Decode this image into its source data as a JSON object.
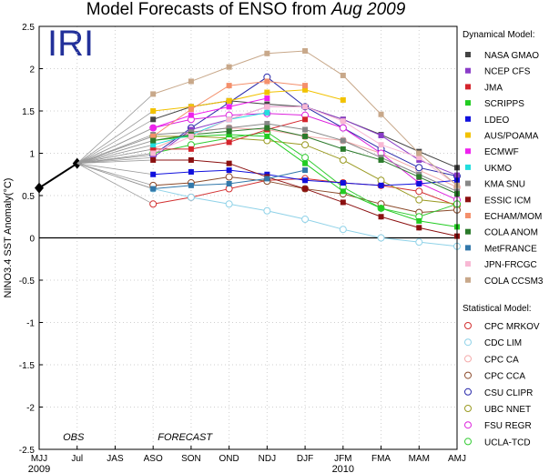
{
  "chart_data": {
    "type": "line",
    "title_main": "Model Forecasts of ENSO from ",
    "title_date": "Aug 2009",
    "logo": "IRI",
    "ylabel": "NINO3.4 SST Anomaly(°C)",
    "ylim": [
      -2.5,
      2.5
    ],
    "yticks": [
      "-2.5",
      "-2",
      "-1.5",
      "-1",
      "-0.5",
      "0",
      "0.5",
      "1",
      "1.5",
      "2",
      "2.5"
    ],
    "categories": [
      "MJJ",
      "Jul",
      "JAS",
      "ASO",
      "SON",
      "OND",
      "NDJ",
      "DJF",
      "JFM",
      "FMA",
      "MAM",
      "AMJ"
    ],
    "year_labels": [
      {
        "text": "2009",
        "at": "MJJ"
      },
      {
        "text": "2010",
        "at": "JFM"
      }
    ],
    "obs_label": "OBS",
    "forecast_label": "FORECAST",
    "observed": {
      "x": [
        "MJJ",
        "Jul"
      ],
      "values": [
        0.59,
        0.88
      ],
      "color": "#000000"
    },
    "legend_dynamical_header": "Dynamical Model:",
    "legend_statistical_header": "Statistical Model:",
    "dynamical": [
      {
        "name": "NASA GMAO",
        "color": "#444444",
        "values": [
          1.4,
          1.55,
          1.62,
          1.58,
          1.55,
          1.4,
          1.22,
          1.02,
          0.83
        ]
      },
      {
        "name": "NCEP CFS",
        "color": "#8a3cc8",
        "values": [
          0.95,
          1.28,
          1.4,
          1.55,
          1.55,
          1.4,
          1.21,
          0.92,
          0.74
        ]
      },
      {
        "name": "JMA",
        "color": "#d4242c",
        "values": [
          1.05,
          1.05,
          1.13,
          1.28,
          1.4,
          null,
          null,
          null,
          null
        ]
      },
      {
        "name": "SCRIPPS",
        "color": "#22cc22",
        "values": [
          1.15,
          1.2,
          1.22,
          1.2,
          0.88,
          0.55,
          0.35,
          0.2,
          0.13
        ]
      },
      {
        "name": "LDEO",
        "color": "#1010dd",
        "values": [
          0.75,
          0.78,
          0.8,
          0.75,
          0.68,
          0.65,
          0.62,
          0.64,
          0.68
        ]
      },
      {
        "name": "AUS/POAMA",
        "color": "#f2c200",
        "values": [
          1.5,
          1.55,
          1.62,
          1.72,
          1.75,
          1.63,
          null,
          null,
          null
        ]
      },
      {
        "name": "ECMWF",
        "color": "#ee22ee",
        "values": [
          1.3,
          1.45,
          1.55,
          1.65,
          null,
          null,
          null,
          null,
          null
        ]
      },
      {
        "name": "UKMO",
        "color": "#22dddd",
        "values": [
          1.1,
          1.22,
          1.4,
          1.48,
          null,
          null,
          null,
          null,
          null
        ]
      },
      {
        "name": "KMA SNU",
        "color": "#888888",
        "values": [
          1.22,
          1.25,
          1.3,
          1.35,
          1.28,
          1.15,
          0.95,
          0.75,
          0.55
        ]
      },
      {
        "name": "ESSIC ICM",
        "color": "#8b1010",
        "values": [
          0.92,
          0.92,
          0.88,
          0.72,
          0.58,
          0.42,
          0.25,
          0.12,
          0.02
        ]
      },
      {
        "name": "ECHAM/MOM",
        "color": "#f4906c",
        "values": [
          1.2,
          1.52,
          1.8,
          1.85,
          1.8,
          null,
          null,
          null,
          null
        ]
      },
      {
        "name": "COLA ANOM",
        "color": "#2b7a2b",
        "values": [
          1.15,
          1.22,
          1.26,
          1.3,
          1.2,
          1.05,
          0.92,
          0.72,
          0.52
        ]
      },
      {
        "name": "MetFRANCE",
        "color": "#3278aa",
        "values": [
          0.58,
          0.62,
          0.64,
          0.7,
          0.8,
          null,
          null,
          null,
          null
        ]
      },
      {
        "name": "JPN-FRCGC",
        "color": "#f8b8d4",
        "values": [
          1.0,
          1.2,
          1.4,
          1.55,
          1.55,
          1.38,
          1.1,
          0.95,
          0.62
        ]
      },
      {
        "name": "COLA CCSM3",
        "color": "#c8a88a",
        "values": [
          1.7,
          1.85,
          2.02,
          2.18,
          2.21,
          1.92,
          1.46,
          1.0,
          0.62
        ]
      }
    ],
    "statistical": [
      {
        "name": "CPC MRKOV",
        "color": "#d23030",
        "values": [
          0.4,
          0.48,
          0.58,
          0.68,
          0.7,
          0.65,
          0.62,
          0.55,
          0.38
        ]
      },
      {
        "name": "CDC LIM",
        "color": "#8fd2e8",
        "values": [
          0.58,
          0.48,
          0.4,
          0.32,
          0.22,
          0.1,
          0.0,
          -0.05,
          -0.1
        ]
      },
      {
        "name": "CPC CA",
        "color": "#f4aaaa",
        "values": [
          1.05,
          1.25,
          1.3,
          1.28,
          1.2,
          1.15,
          1.0,
          0.8,
          0.6
        ]
      },
      {
        "name": "CPC CCA",
        "color": "#8b4a2a",
        "values": [
          0.62,
          0.65,
          0.72,
          0.67,
          0.58,
          0.52,
          0.4,
          0.3,
          0.33
        ]
      },
      {
        "name": "CSU CLIPR",
        "color": "#2828aa",
        "values": [
          0.98,
          1.3,
          1.6,
          1.9,
          1.55,
          1.3,
          1.05,
          0.83,
          0.73
        ]
      },
      {
        "name": "UBC NNET",
        "color": "#9a9a22",
        "values": [
          1.2,
          1.2,
          1.18,
          1.15,
          1.1,
          0.92,
          0.68,
          0.45,
          0.4
        ]
      },
      {
        "name": "FSU REGR",
        "color": "#dd22dd",
        "values": [
          1.3,
          1.4,
          1.45,
          1.47,
          1.45,
          1.3,
          1.0,
          0.65,
          0.45
        ]
      },
      {
        "name": "UCLA-TCD",
        "color": "#33cc33",
        "values": [
          1.0,
          1.1,
          1.18,
          1.25,
          0.95,
          0.6,
          0.35,
          0.25,
          0.4
        ]
      }
    ]
  }
}
